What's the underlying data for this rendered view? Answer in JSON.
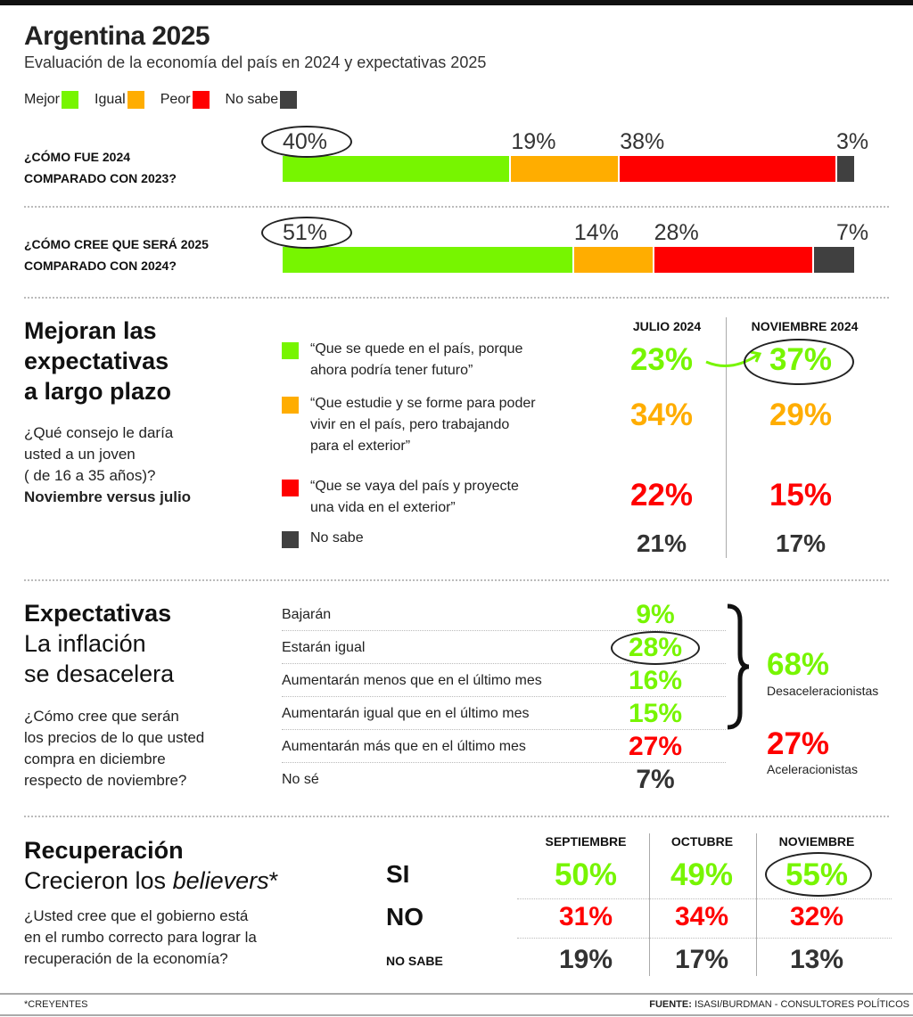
{
  "header": {
    "title": "Argentina 2025",
    "subtitle": "Evaluación de la economía del país en 2024 y expectativas 2025"
  },
  "colors": {
    "mejor": "#77f500",
    "igual": "#ffad00",
    "peor": "#ff0000",
    "no_sabe": "#404040",
    "dark": "#333333"
  },
  "legend": [
    {
      "label": "Mejor",
      "color": "#77f500"
    },
    {
      "label": "Igual",
      "color": "#ffad00"
    },
    {
      "label": "Peor",
      "color": "#ff0000"
    },
    {
      "label": "No sabe",
      "color": "#404040"
    }
  ],
  "chart_data": [
    {
      "type": "bar",
      "stacked": true,
      "orientation": "horizontal",
      "categories": [
        "¿CÓMO FUE 2024 COMPARADO CON 2023?",
        "¿CÓMO CREE QUE SERÁ 2025 COMPARADO CON 2024?"
      ],
      "series": [
        {
          "name": "Mejor",
          "values": [
            40,
            51
          ]
        },
        {
          "name": "Igual",
          "values": [
            19,
            14
          ]
        },
        {
          "name": "Peor",
          "values": [
            38,
            28
          ]
        },
        {
          "name": "No sabe",
          "values": [
            3,
            7
          ]
        }
      ],
      "labels": [
        [
          "40%",
          "19%",
          "38%",
          "3%"
        ],
        [
          "51%",
          "14%",
          "28%",
          "7%"
        ]
      ]
    }
  ],
  "questions": [
    {
      "line1": "¿CÓMO FUE 2024",
      "line2": "COMPARADO CON 2023?"
    },
    {
      "line1": "¿CÓMO CREE QUE SERÁ 2025",
      "line2": "COMPARADO CON 2024?"
    }
  ],
  "section2": {
    "title_lines": [
      "Mejoran las",
      "expectativas",
      "a largo plazo"
    ],
    "question_lines": [
      "¿Qué consejo le daría",
      "usted a un joven",
      "( de 16 a 35 años)?"
    ],
    "note": "Noviembre versus julio",
    "col_headers": [
      "JULIO 2024",
      "NOVIEMBRE 2024"
    ],
    "rows": [
      {
        "lines": [
          "“Que se quede en el país, porque",
          "ahora podría tener futuro”"
        ],
        "julio": "23%",
        "noviembre": "37%"
      },
      {
        "lines": [
          "“Que estudie y se forme para poder",
          "vivir en el país, pero trabajando",
          "para el exterior”"
        ],
        "julio": "34%",
        "noviembre": "29%"
      },
      {
        "lines": [
          "“Que se vaya del país y proyecte",
          "una vida en el exterior”"
        ],
        "julio": "22%",
        "noviembre": "15%"
      },
      {
        "lines": [
          "No sabe"
        ],
        "julio": "21%",
        "noviembre": "17%"
      }
    ]
  },
  "section3": {
    "title": "Expectativas",
    "subtitle_lines": [
      "La inflación",
      "se desacelera"
    ],
    "question_lines": [
      "¿Cómo cree que serán",
      "los precios de lo que usted",
      "compra en diciembre",
      "respecto de noviembre?"
    ],
    "items": [
      {
        "label": "Bajarán",
        "value": "9%"
      },
      {
        "label": "Estarán igual",
        "value": "28%"
      },
      {
        "label": "Aumentarán menos que en el último mes",
        "value": "16%"
      },
      {
        "label": "Aumentarán igual que en el último mes",
        "value": "15%"
      },
      {
        "label": "Aumentarán más que en el último mes",
        "value": "27%"
      },
      {
        "label": "No sé",
        "value": "7%"
      }
    ],
    "group1": {
      "value": "68%",
      "label": "Desaceleracionistas"
    },
    "group2": {
      "value": "27%",
      "label": "Aceleracionistas"
    }
  },
  "section4": {
    "title": "Recuperación",
    "subtitle_prefix": "Crecieron los ",
    "subtitle_italic": "believers",
    "subtitle_suffix": "*",
    "question_lines": [
      "¿Usted cree que el gobierno está",
      "en el rumbo correcto para lograr la",
      "recuperación de la economía?"
    ],
    "col_headers": [
      "SEPTIEMBRE",
      "OCTUBRE",
      "NOVIEMBRE"
    ],
    "rows": [
      {
        "label": "SI",
        "values": [
          "50%",
          "49%",
          "55%"
        ]
      },
      {
        "label": "NO",
        "values": [
          "31%",
          "34%",
          "32%"
        ]
      },
      {
        "label": "NO SABE",
        "values": [
          "19%",
          "17%",
          "13%"
        ]
      }
    ]
  },
  "footer": {
    "note": "*CREYENTES",
    "source_label": "FUENTE:",
    "source": " ISASI/BURDMAN - CONSULTORES POLÍTICOS"
  }
}
